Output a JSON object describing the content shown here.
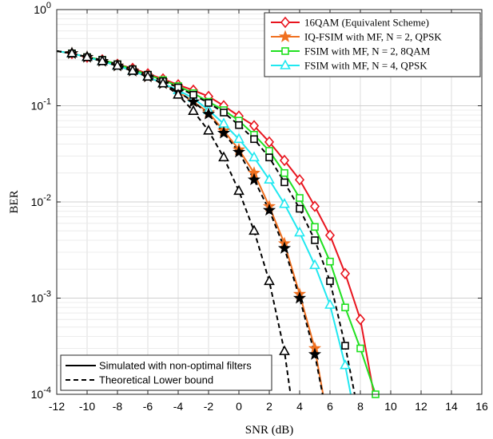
{
  "chart_data": {
    "type": "line",
    "xlabel": "SNR (dB)",
    "ylabel": "BER",
    "xlim": [
      -12,
      16
    ],
    "ylim": [
      0.0001,
      1
    ],
    "yscale": "log",
    "grid": true,
    "x_ticks": [
      "-12",
      "-10",
      "-8",
      "-6",
      "-4",
      "-2",
      "0",
      "2",
      "4",
      "6",
      "8",
      "10",
      "12",
      "14",
      "16"
    ],
    "y_ticks": [
      {
        "value": 1,
        "base": "10",
        "exp": "0"
      },
      {
        "value": 0.1,
        "base": "10",
        "exp": "-1"
      },
      {
        "value": 0.01,
        "base": "10",
        "exp": "-2"
      },
      {
        "value": 0.001,
        "base": "10",
        "exp": "-3"
      },
      {
        "value": 0.0001,
        "base": "10",
        "exp": "-4"
      }
    ],
    "legend_top": {
      "placement": "top-right",
      "entries": [
        {
          "label": "16QAM (Equivalent Scheme)",
          "color": "#e8141e",
          "marker": "diamond"
        },
        {
          "label": "IQ-FSIM with MF, N = 2, QPSK",
          "color": "#f07020",
          "marker": "star"
        },
        {
          "label": "FSIM with MF, N = 2, 8QAM",
          "color": "#20e020",
          "marker": "square"
        },
        {
          "label": "FSIM with MF, N = 4, QPSK",
          "color": "#20e8f0",
          "marker": "triangle"
        }
      ]
    },
    "legend_bottom": {
      "placement": "bottom-left",
      "entries": [
        {
          "label": "Simulated with non-optimal filters",
          "style": "solid"
        },
        {
          "label": "Theoretical Lower bound",
          "style": "dashed"
        }
      ]
    },
    "series": [
      {
        "name": "16QAM (Equivalent Scheme)",
        "color": "#e8141e",
        "marker": "diamond",
        "style": "solid",
        "x": [
          -12,
          -11,
          -10,
          -9,
          -8,
          -7,
          -6,
          -5,
          -4,
          -3,
          -2,
          -1,
          0,
          1,
          2,
          3,
          4,
          5,
          6,
          7,
          8,
          9
        ],
        "y": [
          0.37,
          0.35,
          0.32,
          0.3,
          0.27,
          0.245,
          0.215,
          0.19,
          0.165,
          0.145,
          0.125,
          0.1,
          0.078,
          0.062,
          0.042,
          0.027,
          0.017,
          0.009,
          0.0045,
          0.0018,
          0.0006,
          8e-05
        ]
      },
      {
        "name": "IQ-FSIM with MF, N = 2, QPSK",
        "color": "#f07020",
        "marker": "star",
        "style": "solid",
        "x": [
          -12,
          -11,
          -10,
          -9,
          -8,
          -7,
          -6,
          -5,
          -4,
          -3,
          -2,
          -1,
          0,
          1,
          2,
          3,
          4,
          5,
          6
        ],
        "y": [
          0.37,
          0.35,
          0.32,
          0.29,
          0.26,
          0.23,
          0.2,
          0.17,
          0.14,
          0.11,
          0.085,
          0.055,
          0.035,
          0.02,
          0.009,
          0.0037,
          0.0011,
          0.0003,
          4e-05
        ]
      },
      {
        "name": "FSIM with MF, N = 2, 8QAM",
        "color": "#20e020",
        "marker": "square",
        "style": "solid",
        "x": [
          -12,
          -11,
          -10,
          -9,
          -8,
          -7,
          -6,
          -5,
          -4,
          -3,
          -2,
          -1,
          0,
          1,
          2,
          3,
          4,
          5,
          6,
          7,
          8,
          9
        ],
        "y": [
          0.37,
          0.35,
          0.32,
          0.3,
          0.27,
          0.24,
          0.21,
          0.185,
          0.16,
          0.135,
          0.11,
          0.09,
          0.07,
          0.05,
          0.034,
          0.02,
          0.011,
          0.0055,
          0.0024,
          0.0008,
          0.0003,
          0.0001
        ]
      },
      {
        "name": "FSIM with MF, N = 4, QPSK",
        "color": "#20e8f0",
        "marker": "triangle",
        "style": "solid",
        "x": [
          -12,
          -11,
          -10,
          -9,
          -8,
          -7,
          -6,
          -5,
          -4,
          -3,
          -2,
          -1,
          0,
          1,
          2,
          3,
          4,
          5,
          6,
          7,
          8
        ],
        "y": [
          0.37,
          0.35,
          0.32,
          0.29,
          0.26,
          0.23,
          0.2,
          0.17,
          0.145,
          0.12,
          0.09,
          0.065,
          0.045,
          0.029,
          0.017,
          0.0095,
          0.0048,
          0.0022,
          0.00085,
          0.0002,
          3e-05
        ]
      },
      {
        "name": "",
        "color": "#000000",
        "marker": "star",
        "style": "dashed",
        "x": [
          -12,
          -11,
          -10,
          -9,
          -8,
          -7,
          -6,
          -5,
          -4,
          -3,
          -2,
          -1,
          0,
          1,
          2,
          3,
          4,
          5,
          6
        ],
        "y": [
          0.37,
          0.35,
          0.32,
          0.29,
          0.26,
          0.23,
          0.2,
          0.17,
          0.14,
          0.11,
          0.082,
          0.052,
          0.033,
          0.017,
          0.0082,
          0.0033,
          0.001,
          0.00026,
          4e-05
        ]
      },
      {
        "name": "",
        "color": "#000000",
        "marker": "square",
        "style": "dashed",
        "x": [
          -12,
          -11,
          -10,
          -9,
          -8,
          -7,
          -6,
          -5,
          -4,
          -3,
          -2,
          -1,
          0,
          1,
          2,
          3,
          4,
          5,
          6,
          7,
          8
        ],
        "y": [
          0.37,
          0.35,
          0.32,
          0.3,
          0.27,
          0.24,
          0.21,
          0.18,
          0.155,
          0.13,
          0.107,
          0.085,
          0.063,
          0.045,
          0.029,
          0.016,
          0.0085,
          0.004,
          0.0015,
          0.00032,
          5e-05
        ]
      },
      {
        "name": "",
        "color": "#000000",
        "marker": "triangle",
        "style": "dashed",
        "x": [
          -12,
          -11,
          -10,
          -9,
          -8,
          -7,
          -6,
          -5,
          -4,
          -3,
          -2,
          -1,
          0,
          1,
          2,
          3,
          3.4
        ],
        "y": [
          0.37,
          0.35,
          0.32,
          0.29,
          0.26,
          0.23,
          0.2,
          0.17,
          0.13,
          0.088,
          0.055,
          0.029,
          0.013,
          0.005,
          0.0015,
          0.00028,
          0.0001
        ]
      }
    ],
    "marker_points": [
      {
        "series": 0,
        "x": [
          -11,
          -10,
          -9,
          -8,
          -7,
          -6,
          -5,
          -4,
          -3,
          -2,
          -1,
          0,
          1,
          2,
          3,
          4,
          5,
          6,
          7,
          8
        ]
      },
      {
        "series": 1,
        "x": [
          -11,
          -10,
          -9,
          -8,
          -7,
          -6,
          -5,
          -4,
          -3,
          -2,
          -1,
          0,
          1,
          2,
          3,
          4,
          5
        ]
      },
      {
        "series": 2,
        "x": [
          -11,
          -10,
          -9,
          -8,
          -7,
          -6,
          -5,
          -4,
          -3,
          -2,
          -1,
          0,
          1,
          2,
          3,
          4,
          5,
          6,
          7,
          8,
          9
        ]
      },
      {
        "series": 3,
        "x": [
          -11,
          -10,
          -9,
          -8,
          -7,
          -6,
          -5,
          -4,
          -3,
          -2,
          -1,
          0,
          1,
          2,
          3,
          4,
          5,
          6,
          7
        ]
      },
      {
        "series": 4,
        "x": [
          -11,
          -10,
          -9,
          -8,
          -7,
          -6,
          -5,
          -4,
          -3,
          -2,
          -1,
          0,
          1,
          2,
          3,
          4,
          5
        ]
      },
      {
        "series": 5,
        "x": [
          -11,
          -10,
          -9,
          -8,
          -7,
          -6,
          -5,
          -4,
          -3,
          -2,
          -1,
          0,
          1,
          2,
          3,
          4,
          5,
          6,
          7
        ]
      },
      {
        "series": 6,
        "x": [
          -11,
          -10,
          -9,
          -8,
          -7,
          -6,
          -5,
          -4,
          -3,
          -2,
          -1,
          0,
          1,
          2,
          3
        ]
      }
    ]
  }
}
